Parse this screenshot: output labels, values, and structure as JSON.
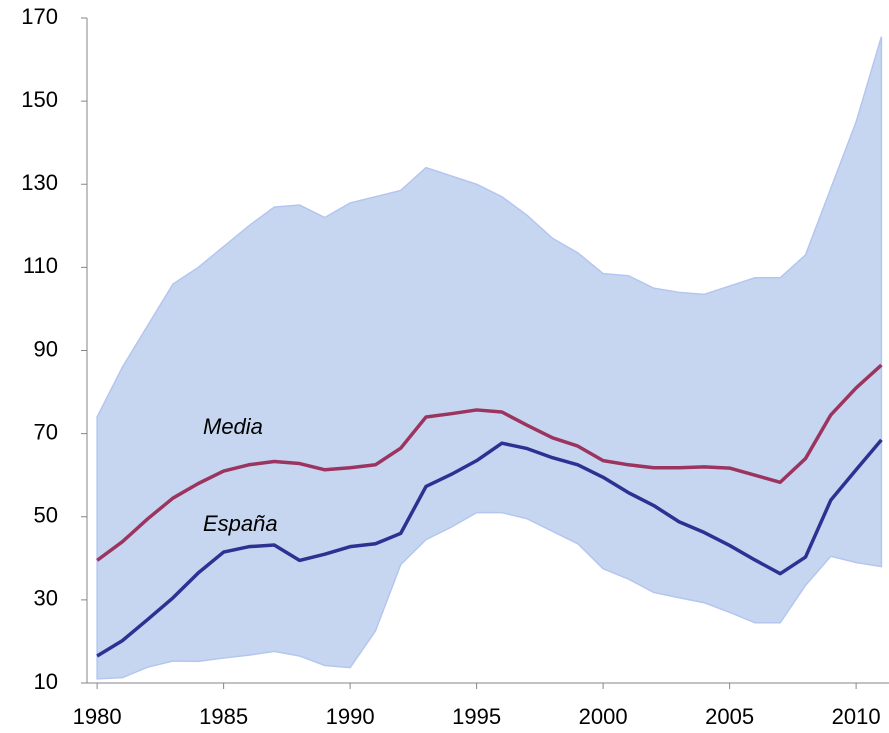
{
  "chart_data": {
    "type": "line",
    "x": [
      1980,
      1981,
      1982,
      1983,
      1984,
      1985,
      1986,
      1987,
      1988,
      1989,
      1990,
      1991,
      1992,
      1993,
      1994,
      1995,
      1996,
      1997,
      1998,
      1999,
      2000,
      2001,
      2002,
      2003,
      2004,
      2005,
      2006,
      2007,
      2008,
      2009,
      2010,
      2011
    ],
    "band": {
      "color": "#c7d6f0",
      "edge_color": "#b4c6ef",
      "upper": [
        74,
        86,
        96,
        106,
        110,
        115,
        120,
        124.5,
        125,
        122,
        125.5,
        127,
        128.5,
        134,
        132,
        130,
        127,
        122.5,
        117,
        113.5,
        108.5,
        108,
        105,
        104,
        103.5,
        105.5,
        107.5,
        107.5,
        113,
        129,
        145,
        165.5
      ],
      "lower": [
        11,
        11.3,
        13.8,
        15.3,
        15.2,
        16,
        16.7,
        17.6,
        16.5,
        14.2,
        13.7,
        22.5,
        38.5,
        44.5,
        47.5,
        51,
        51,
        49.5,
        46.5,
        43.5,
        37.5,
        35,
        31.8,
        30.5,
        29.3,
        27,
        24.5,
        24.5,
        33.5,
        40.5,
        39,
        38
      ]
    },
    "series": [
      {
        "name": "Media",
        "color": "#9b3560",
        "values": [
          39.5,
          44,
          49.5,
          54.5,
          58,
          61,
          62.5,
          63.3,
          62.8,
          61.3,
          61.8,
          62.5,
          66.5,
          74,
          74.8,
          75.7,
          75.2,
          72,
          69,
          67,
          63.5,
          62.5,
          61.8,
          61.8,
          62,
          61.7,
          60,
          58.3,
          64,
          74.5,
          81,
          86.5
        ]
      },
      {
        "name": "España",
        "color": "#2e3192",
        "values": [
          16.5,
          20.2,
          25.3,
          30.5,
          36.5,
          41.5,
          42.8,
          43.2,
          39.5,
          41,
          42.8,
          43.5,
          46,
          57.3,
          60.2,
          63.5,
          67.7,
          66.4,
          64.2,
          62.5,
          59.5,
          55.8,
          52.7,
          48.8,
          46.2,
          43.1,
          39.6,
          36.3,
          40.3,
          54,
          61.3,
          68.5
        ]
      }
    ],
    "xlim": [
      1979.6,
      2011.3
    ],
    "xticks": [
      1980,
      1985,
      1990,
      1995,
      2000,
      2005,
      2010
    ],
    "ylim": [
      10,
      170
    ],
    "yticks": [
      10,
      30,
      50,
      70,
      90,
      110,
      130,
      150,
      170
    ]
  }
}
